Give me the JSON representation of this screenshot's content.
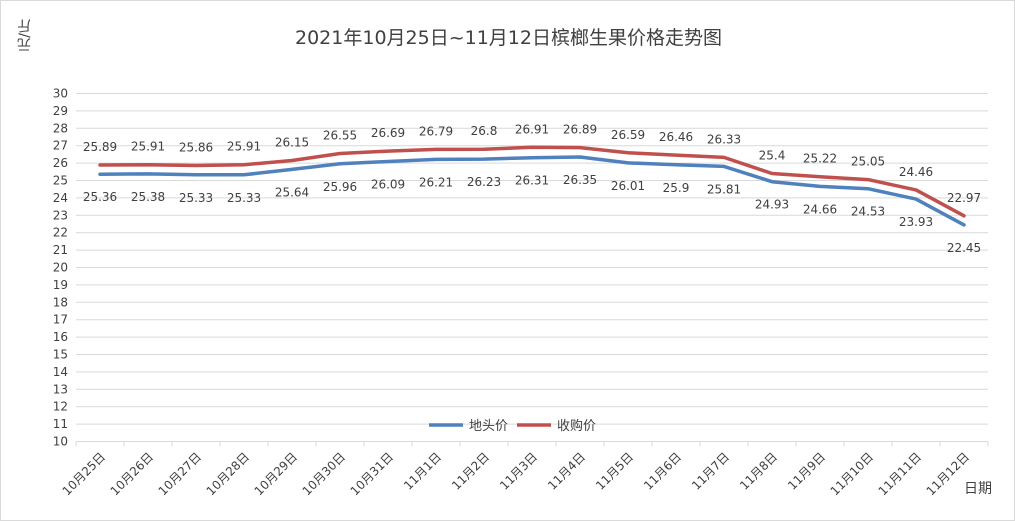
{
  "chart_data": {
    "type": "line",
    "title": "2021年10月25日~11月12日槟榔生果价格走势图",
    "ylabel": "元/斤",
    "xlabel": "日期",
    "ylim": [
      10,
      30
    ],
    "yticks": [
      10,
      11,
      12,
      13,
      14,
      15,
      16,
      17,
      18,
      19,
      20,
      21,
      22,
      23,
      24,
      25,
      26,
      27,
      28,
      29,
      30
    ],
    "grid": true,
    "legend_position": "bottom-center",
    "categories": [
      "10月25日",
      "10月26日",
      "10月27日",
      "10月28日",
      "10月29日",
      "10月30日",
      "10月31日",
      "11月1日",
      "11月2日",
      "11月3日",
      "11月4日",
      "11月5日",
      "11月6日",
      "11月7日",
      "11月8日",
      "11月9日",
      "11月10日",
      "11月11日",
      "11月12日"
    ],
    "series": [
      {
        "name": "地头价",
        "color": "#4f81bd",
        "label_position": "below",
        "values": [
          25.36,
          25.38,
          25.33,
          25.33,
          25.64,
          25.96,
          26.09,
          26.21,
          26.23,
          26.31,
          26.35,
          26.01,
          25.9,
          25.81,
          24.93,
          24.66,
          24.53,
          23.93,
          22.45
        ]
      },
      {
        "name": "收购价",
        "color": "#c0504d",
        "label_position": "above",
        "values": [
          25.89,
          25.91,
          25.86,
          25.91,
          26.15,
          26.55,
          26.69,
          26.79,
          26.8,
          26.91,
          26.89,
          26.59,
          26.46,
          26.33,
          25.4,
          25.22,
          25.05,
          24.46,
          22.97
        ]
      }
    ]
  }
}
